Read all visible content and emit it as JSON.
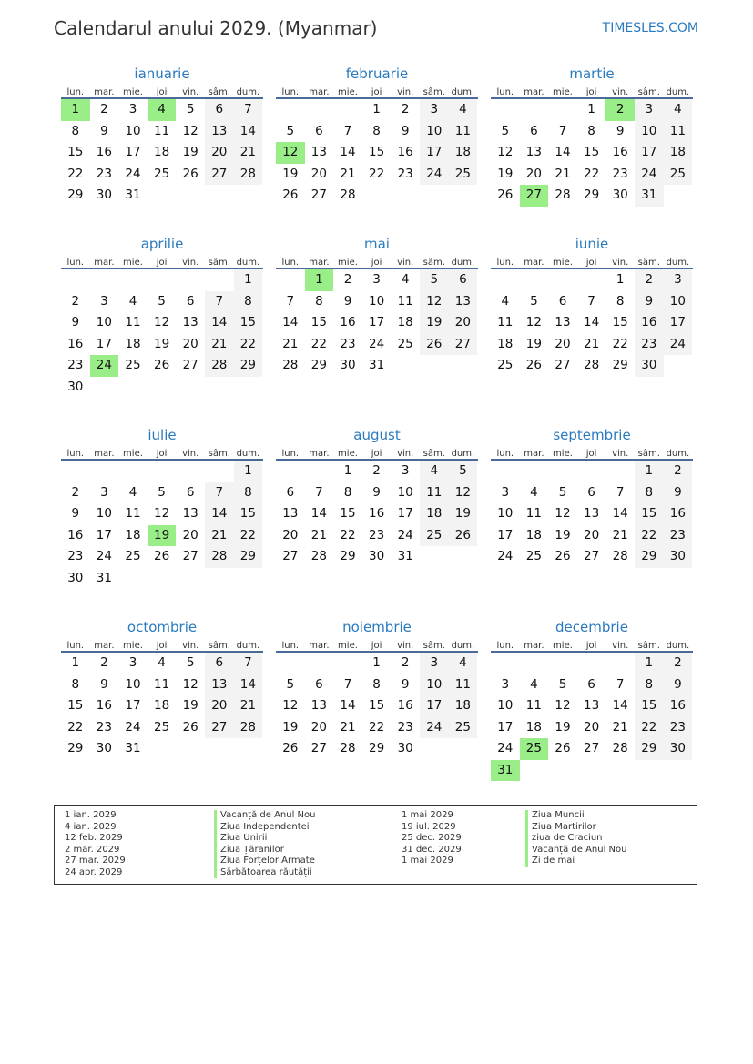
{
  "header": {
    "title": "Calendarul anului 2029. (Myanmar)",
    "brand": "TIMESLES.COM"
  },
  "year": 2029,
  "weekdays": [
    "lun.",
    "mar.",
    "mie.",
    "joi",
    "vin.",
    "sâm.",
    "dum."
  ],
  "months": [
    "ianuarie",
    "februarie",
    "martie",
    "aprilie",
    "mai",
    "iunie",
    "iulie",
    "august",
    "septembrie",
    "octombrie",
    "noiembrie",
    "decembrie"
  ],
  "holiday_dates": [
    [
      1,
      1
    ],
    [
      1,
      4
    ],
    [
      2,
      12
    ],
    [
      3,
      2
    ],
    [
      3,
      27
    ],
    [
      4,
      24
    ],
    [
      5,
      1
    ],
    [
      7,
      19
    ],
    [
      12,
      25
    ],
    [
      12,
      31
    ]
  ],
  "colors": {
    "accent": "#2a7abf",
    "holiday": "#99ee88",
    "weekend": "#f3f3f3"
  },
  "legend": [
    {
      "date": "1 ian. 2029",
      "name": "Vacanță de Anul Nou"
    },
    {
      "date": "4 ian. 2029",
      "name": "Ziua Independentei"
    },
    {
      "date": "12 feb. 2029",
      "name": "Ziua Unirii"
    },
    {
      "date": "2 mar. 2029",
      "name": "Ziua Țăranilor"
    },
    {
      "date": "27 mar. 2029",
      "name": "Ziua Forțelor Armate"
    },
    {
      "date": "24 apr. 2029",
      "name": "Sărbătoarea răutății"
    },
    {
      "date": "1 mai 2029",
      "name": "Ziua Muncii"
    },
    {
      "date": "19 iul. 2029",
      "name": "Ziua Martirilor"
    },
    {
      "date": "25 dec. 2029",
      "name": "ziua de Craciun"
    },
    {
      "date": "31 dec. 2029",
      "name": "Vacanță de Anul Nou"
    },
    {
      "date": "1 mai 2029",
      "name": "Zi de mai"
    }
  ]
}
